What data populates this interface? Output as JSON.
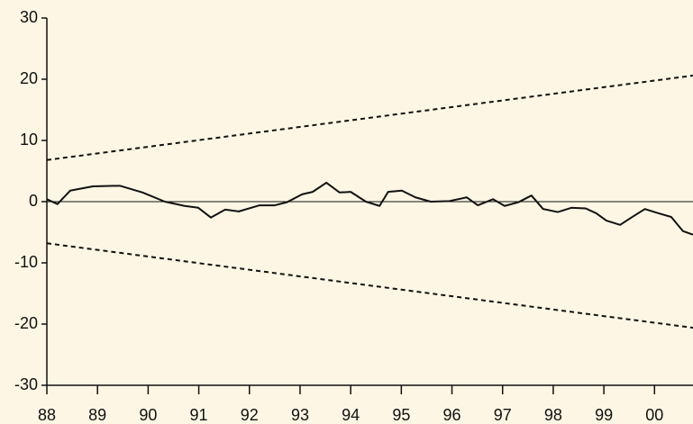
{
  "chart_data": {
    "type": "line",
    "xlim": [
      88,
      100.76
    ],
    "ylim": [
      -30,
      30
    ],
    "xticks": [
      88,
      89,
      90,
      91,
      92,
      93,
      94,
      95,
      96,
      97,
      98,
      99,
      {
        "value": 100,
        "label": "00"
      }
    ],
    "yticks": [
      -30,
      -20,
      -10,
      0,
      10,
      20,
      30
    ],
    "zero_line": true,
    "series": [
      {
        "color": "#111111",
        "dashed": false,
        "x": [
          88.0,
          88.21,
          88.46,
          88.91,
          89.44,
          89.89,
          90.33,
          90.72,
          90.99,
          91.24,
          91.52,
          91.79,
          92.2,
          92.5,
          92.74,
          93.04,
          93.25,
          93.52,
          93.78,
          94.0,
          94.3,
          94.57,
          94.74,
          95.01,
          95.28,
          95.58,
          95.95,
          96.29,
          96.51,
          96.81,
          97.04,
          97.31,
          97.57,
          97.8,
          98.09,
          98.36,
          98.64,
          98.85,
          99.05,
          99.32,
          99.58,
          99.81,
          100.08,
          100.33,
          100.56,
          100.76
        ],
        "values": [
          0.4,
          -0.4,
          1.8,
          2.5,
          2.6,
          1.5,
          0,
          -0.7,
          -1.0,
          -2.6,
          -1.3,
          -1.6,
          -0.6,
          -0.6,
          -0.1,
          1.2,
          1.6,
          3.1,
          1.5,
          1.6,
          0,
          -0.7,
          1.6,
          1.8,
          0.7,
          0,
          0.1,
          0.7,
          -0.6,
          0.4,
          -0.7,
          -0.1,
          1.0,
          -1.2,
          -1.7,
          -1.0,
          -1.1,
          -1.9,
          -3.1,
          -3.8,
          -2.4,
          -1.2,
          -1.9,
          -2.5,
          -4.8,
          -5.4
        ]
      },
      {
        "color": "#111111",
        "dashed": true,
        "x": [
          88,
          100.76
        ],
        "values": [
          6.8,
          20.6
        ]
      },
      {
        "color": "#111111",
        "dashed": true,
        "x": [
          88,
          100.76
        ],
        "values": [
          -6.8,
          -20.6
        ]
      }
    ]
  }
}
